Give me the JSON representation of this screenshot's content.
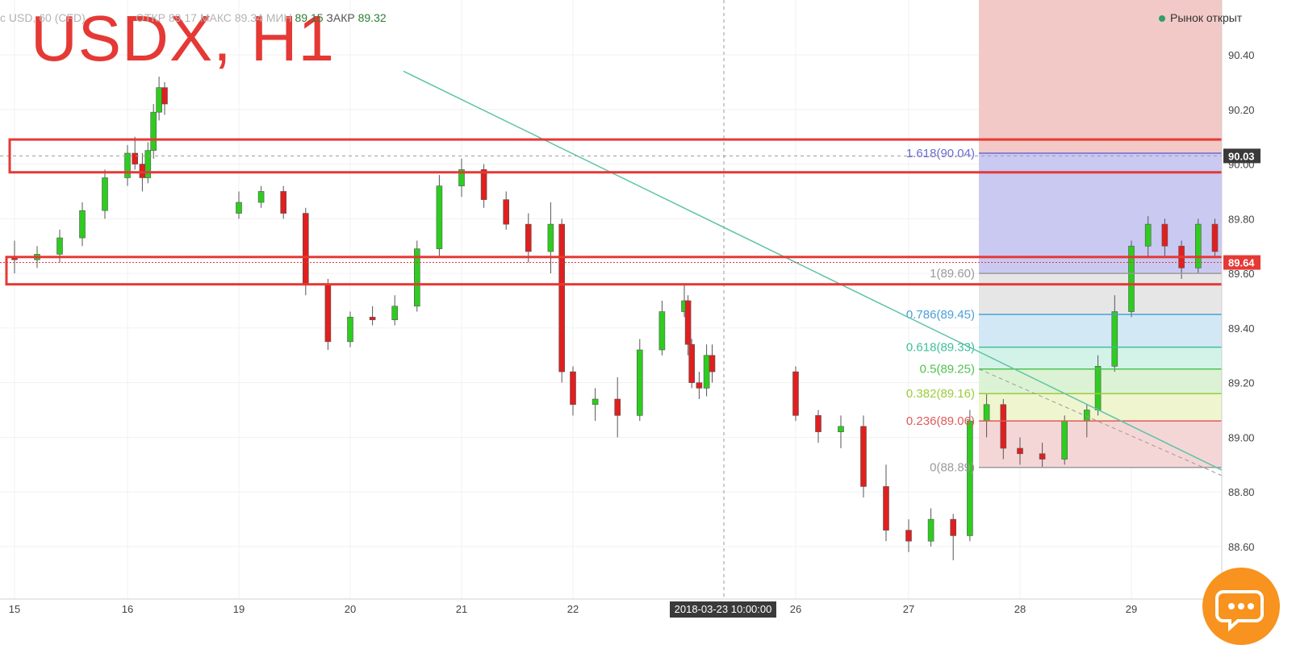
{
  "title": "USDX, H1",
  "legend": {
    "symbol": "c USD",
    "interval": "60",
    "source": "(CFD)",
    "open_label": "ОТКР",
    "open_value": "89.17",
    "high_label": "МАКС",
    "high_value": "89.34",
    "low_label": "МИН",
    "low_value": "89.15",
    "close_label": "ЗАКР",
    "close_value": "89.32"
  },
  "market_status": "Рынок открыт",
  "crosshair_date": "2018-03-23 10:00:00",
  "colors": {
    "up": "#2ecc1f",
    "down": "#e01f1f",
    "trendline": "#5ec3a8",
    "box": "#e53935",
    "price_tag": "#e53935",
    "chat_button": "#f7931e"
  },
  "chart_data": {
    "type": "candlestick",
    "y_range": [
      88.52,
      90.6
    ],
    "y_ticks": [
      "90.40",
      "90.20",
      "90.00",
      "89.80",
      "89.60",
      "89.40",
      "89.20",
      "89.00",
      "88.80",
      "88.60"
    ],
    "x_ticks": [
      "15",
      "16",
      "19",
      "20",
      "21",
      "22",
      "26",
      "27",
      "28",
      "29"
    ],
    "current_price": "89.64",
    "horizontal_price": "90.03",
    "fibonacci": [
      {
        "label": "1.618(90.04)",
        "value": 90.04,
        "color": "#6b6bd6"
      },
      {
        "label": "1(89.60)",
        "value": 89.6,
        "color": "#9a9a9a"
      },
      {
        "label": "0.786(89.45)",
        "value": 89.45,
        "color": "#4a9fd8"
      },
      {
        "label": "0.618(89.33)",
        "value": 89.33,
        "color": "#3fbf9a"
      },
      {
        "label": "0.5(89.25)",
        "value": 89.25,
        "color": "#4fc24f"
      },
      {
        "label": "0.382(89.16)",
        "value": 89.16,
        "color": "#9ccc3a"
      },
      {
        "label": "0.236(89.06)",
        "value": 89.06,
        "color": "#e05a5a"
      },
      {
        "label": "0(88.89)",
        "value": 88.89,
        "color": "#9a9a9a"
      }
    ],
    "resistance_zones": [
      [
        89.97,
        90.09
      ],
      [
        89.56,
        89.66
      ]
    ],
    "trendline": {
      "start": [
        18.0,
        90.34
      ],
      "end": [
        29.8,
        88.88
      ]
    },
    "series": [
      {
        "x": 15.0,
        "o": 89.66,
        "h": 89.72,
        "l": 89.6,
        "c": 89.65
      },
      {
        "x": 15.2,
        "o": 89.65,
        "h": 89.7,
        "l": 89.62,
        "c": 89.67
      },
      {
        "x": 15.4,
        "o": 89.67,
        "h": 89.76,
        "l": 89.64,
        "c": 89.73
      },
      {
        "x": 15.6,
        "o": 89.73,
        "h": 89.86,
        "l": 89.7,
        "c": 89.83
      },
      {
        "x": 15.8,
        "o": 89.83,
        "h": 89.98,
        "l": 89.8,
        "c": 89.95
      },
      {
        "x": 16.0,
        "o": 89.95,
        "h": 90.07,
        "l": 89.92,
        "c": 90.04
      },
      {
        "x": 16.2,
        "o": 90.04,
        "h": 90.1,
        "l": 89.98,
        "c": 90.0
      },
      {
        "x": 16.4,
        "o": 90.0,
        "h": 90.04,
        "l": 89.9,
        "c": 89.95
      },
      {
        "x": 16.55,
        "o": 89.95,
        "h": 90.08,
        "l": 89.93,
        "c": 90.05
      },
      {
        "x": 16.7,
        "o": 90.05,
        "h": 90.22,
        "l": 90.02,
        "c": 90.19
      },
      {
        "x": 16.85,
        "o": 90.19,
        "h": 90.32,
        "l": 90.16,
        "c": 90.28
      },
      {
        "x": 17.0,
        "o": 90.28,
        "h": 90.3,
        "l": 90.18,
        "c": 90.22
      },
      {
        "x": 19.0,
        "o": 89.82,
        "h": 89.9,
        "l": 89.8,
        "c": 89.86
      },
      {
        "x": 19.2,
        "o": 89.86,
        "h": 89.92,
        "l": 89.84,
        "c": 89.9
      },
      {
        "x": 19.4,
        "o": 89.9,
        "h": 89.92,
        "l": 89.8,
        "c": 89.82
      },
      {
        "x": 19.6,
        "o": 89.82,
        "h": 89.84,
        "l": 89.52,
        "c": 89.56
      },
      {
        "x": 19.8,
        "o": 89.56,
        "h": 89.58,
        "l": 89.32,
        "c": 89.35
      },
      {
        "x": 20.0,
        "o": 89.35,
        "h": 89.46,
        "l": 89.33,
        "c": 89.44
      },
      {
        "x": 20.2,
        "o": 89.44,
        "h": 89.48,
        "l": 89.41,
        "c": 89.43
      },
      {
        "x": 20.4,
        "o": 89.43,
        "h": 89.52,
        "l": 89.41,
        "c": 89.48
      },
      {
        "x": 20.6,
        "o": 89.48,
        "h": 89.72,
        "l": 89.46,
        "c": 89.69
      },
      {
        "x": 20.8,
        "o": 89.69,
        "h": 89.96,
        "l": 89.66,
        "c": 89.92
      },
      {
        "x": 21.0,
        "o": 89.92,
        "h": 90.02,
        "l": 89.88,
        "c": 89.98
      },
      {
        "x": 21.2,
        "o": 89.98,
        "h": 90.0,
        "l": 89.84,
        "c": 89.87
      },
      {
        "x": 21.4,
        "o": 89.87,
        "h": 89.9,
        "l": 89.76,
        "c": 89.78
      },
      {
        "x": 21.6,
        "o": 89.78,
        "h": 89.82,
        "l": 89.64,
        "c": 89.68
      },
      {
        "x": 21.8,
        "o": 89.68,
        "h": 89.86,
        "l": 89.6,
        "c": 89.78
      },
      {
        "x": 21.9,
        "o": 89.78,
        "h": 89.8,
        "l": 89.2,
        "c": 89.24
      },
      {
        "x": 22.0,
        "o": 89.24,
        "h": 89.26,
        "l": 89.08,
        "c": 89.12
      },
      {
        "x": 22.2,
        "o": 89.12,
        "h": 89.18,
        "l": 89.06,
        "c": 89.14
      },
      {
        "x": 22.4,
        "o": 89.14,
        "h": 89.22,
        "l": 89.0,
        "c": 89.08
      },
      {
        "x": 22.6,
        "o": 89.08,
        "h": 89.36,
        "l": 89.06,
        "c": 89.32
      },
      {
        "x": 22.8,
        "o": 89.32,
        "h": 89.5,
        "l": 89.3,
        "c": 89.46
      },
      {
        "x": 23.0,
        "o": 89.46,
        "h": 89.56,
        "l": 89.44,
        "c": 89.5
      },
      {
        "x": 23.1,
        "o": 89.5,
        "h": 89.52,
        "l": 89.3,
        "c": 89.34
      },
      {
        "x": 23.2,
        "o": 89.34,
        "h": 89.36,
        "l": 89.18,
        "c": 89.2
      },
      {
        "x": 23.4,
        "o": 89.2,
        "h": 89.24,
        "l": 89.14,
        "c": 89.18
      },
      {
        "x": 23.6,
        "o": 89.18,
        "h": 89.34,
        "l": 89.15,
        "c": 89.3
      },
      {
        "x": 23.75,
        "o": 89.3,
        "h": 89.34,
        "l": 89.2,
        "c": 89.24
      },
      {
        "x": 26.0,
        "o": 89.24,
        "h": 89.26,
        "l": 89.06,
        "c": 89.08
      },
      {
        "x": 26.2,
        "o": 89.08,
        "h": 89.1,
        "l": 88.98,
        "c": 89.02
      },
      {
        "x": 26.4,
        "o": 89.02,
        "h": 89.08,
        "l": 88.96,
        "c": 89.04
      },
      {
        "x": 26.6,
        "o": 89.04,
        "h": 89.08,
        "l": 88.78,
        "c": 88.82
      },
      {
        "x": 26.8,
        "o": 88.82,
        "h": 88.9,
        "l": 88.62,
        "c": 88.66
      },
      {
        "x": 27.0,
        "o": 88.66,
        "h": 88.7,
        "l": 88.58,
        "c": 88.62
      },
      {
        "x": 27.2,
        "o": 88.62,
        "h": 88.74,
        "l": 88.6,
        "c": 88.7
      },
      {
        "x": 27.4,
        "o": 88.7,
        "h": 88.72,
        "l": 88.55,
        "c": 88.64
      },
      {
        "x": 27.55,
        "o": 88.64,
        "h": 89.1,
        "l": 88.62,
        "c": 89.06
      },
      {
        "x": 27.7,
        "o": 89.06,
        "h": 89.16,
        "l": 89.0,
        "c": 89.12
      },
      {
        "x": 27.85,
        "o": 89.12,
        "h": 89.14,
        "l": 88.92,
        "c": 88.96
      },
      {
        "x": 28.0,
        "o": 88.96,
        "h": 89.0,
        "l": 88.9,
        "c": 88.94
      },
      {
        "x": 28.2,
        "o": 88.94,
        "h": 88.98,
        "l": 88.89,
        "c": 88.92
      },
      {
        "x": 28.4,
        "o": 88.92,
        "h": 89.08,
        "l": 88.9,
        "c": 89.06
      },
      {
        "x": 28.6,
        "o": 89.06,
        "h": 89.12,
        "l": 89.0,
        "c": 89.1
      },
      {
        "x": 28.7,
        "o": 89.1,
        "h": 89.3,
        "l": 89.08,
        "c": 89.26
      },
      {
        "x": 28.85,
        "o": 89.26,
        "h": 89.52,
        "l": 89.24,
        "c": 89.46
      },
      {
        "x": 29.0,
        "o": 89.46,
        "h": 89.72,
        "l": 89.44,
        "c": 89.7
      },
      {
        "x": 29.15,
        "o": 89.7,
        "h": 89.81,
        "l": 89.66,
        "c": 89.78
      },
      {
        "x": 29.3,
        "o": 89.78,
        "h": 89.8,
        "l": 89.66,
        "c": 89.7
      },
      {
        "x": 29.45,
        "o": 89.7,
        "h": 89.72,
        "l": 89.58,
        "c": 89.62
      },
      {
        "x": 29.6,
        "o": 89.62,
        "h": 89.8,
        "l": 89.6,
        "c": 89.78
      },
      {
        "x": 29.75,
        "o": 89.78,
        "h": 89.8,
        "l": 89.66,
        "c": 89.68
      },
      {
        "x": 29.85,
        "o": 89.68,
        "h": 89.7,
        "l": 89.6,
        "c": 89.64
      }
    ]
  }
}
